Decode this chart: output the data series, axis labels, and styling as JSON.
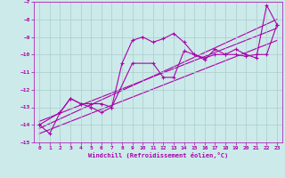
{
  "xlabel": "Windchill (Refroidissement éolien,°C)",
  "bg_color": "#cceaea",
  "grid_color": "#aacccc",
  "line_color": "#aa00aa",
  "xlim": [
    -0.5,
    23.5
  ],
  "ylim": [
    -15,
    -7
  ],
  "xticks": [
    0,
    1,
    2,
    3,
    4,
    5,
    6,
    7,
    8,
    9,
    10,
    11,
    12,
    13,
    14,
    15,
    16,
    17,
    18,
    19,
    20,
    21,
    22,
    23
  ],
  "yticks": [
    -15,
    -14,
    -13,
    -12,
    -11,
    -10,
    -9,
    -8,
    -7
  ],
  "series1_x": [
    0,
    1,
    2,
    3,
    4,
    5,
    6,
    7,
    8,
    9,
    10,
    11,
    12,
    13,
    14,
    15,
    16,
    17,
    18,
    19,
    20,
    21,
    22,
    23
  ],
  "series1_y": [
    -14.0,
    -14.5,
    -13.3,
    -12.5,
    -12.8,
    -13.0,
    -13.3,
    -13.0,
    -10.5,
    -9.2,
    -9.0,
    -9.3,
    -9.1,
    -8.8,
    -9.3,
    -10.0,
    -10.3,
    -9.7,
    -10.0,
    -9.7,
    -10.0,
    -10.2,
    -7.2,
    -8.3
  ],
  "trend1_x": [
    0,
    23
  ],
  "trend1_y": [
    -14.2,
    -8.0
  ],
  "trend2_x": [
    0,
    23
  ],
  "trend2_y": [
    -13.8,
    -8.5
  ],
  "trend3_x": [
    0,
    23
  ],
  "trend3_y": [
    -14.5,
    -9.2
  ],
  "series2_x": [
    0,
    2,
    3,
    4,
    5,
    6,
    7,
    9,
    11,
    12,
    13,
    14,
    15,
    16,
    17,
    18,
    19,
    20,
    21,
    22,
    23
  ],
  "series2_y": [
    -14.0,
    -13.3,
    -12.5,
    -12.8,
    -12.8,
    -12.8,
    -13.0,
    -10.5,
    -10.5,
    -11.3,
    -11.3,
    -9.8,
    -10.0,
    -10.2,
    -10.0,
    -10.0,
    -10.0,
    -10.1,
    -10.0,
    -10.0,
    -8.3
  ]
}
